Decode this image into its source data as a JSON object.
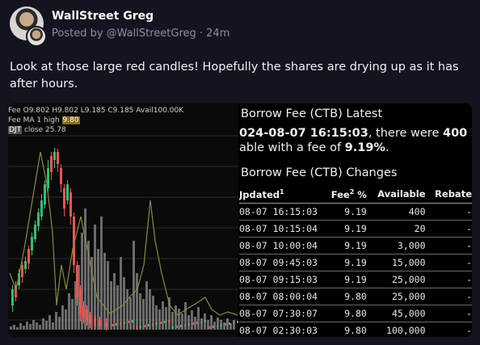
{
  "post": {
    "author": "WallStreet Greg",
    "meta": "Posted by @WallStreetGreg · 24m",
    "text": "Look at those large red candles! Hopefully the shares are drying up as it has after hours."
  },
  "chart_image": {
    "legend_line1": "Fee O9.802 H9.802 L9.185 C9.185 Avail100.00K",
    "legend_line2_prefix": "Fee MA 1 high",
    "legend_line2_value": "9.80",
    "legend_line3_symbol": "DJT",
    "legend_line3_text": "close 25.78",
    "colors": {
      "up": "#2fbf71",
      "down": "#ef5350",
      "volume": "#8c8c8c",
      "fee_line": "#8c8a3a"
    }
  },
  "chart_data": {
    "type": "candlestick",
    "legend": [
      "Fee O9.802 H9.802 L9.185 C9.185 Avail100.00K",
      "Fee MA 1 high 9.80",
      "DJT close 25.78"
    ],
    "price_close": 25.78,
    "fee_high": 9.8
  },
  "borrow": {
    "latest_title": "Borrow Fee (CTB) Latest",
    "latest_date": "024-08-07 16:15:03",
    "latest_text_mid": ", there were ",
    "latest_count": "400",
    "latest_line2_a": "able with a fee of ",
    "latest_fee": "9.19%",
    "latest_line2_b": ".",
    "changes_title": "Borrow Fee (CTB) Changes",
    "columns": {
      "updated": "Jpdated",
      "updated_sup": "1",
      "fee": "Fee",
      "fee_sup": "2",
      "fee_unit": "%",
      "available": "Available",
      "rebate": "Rebate"
    },
    "rows": [
      {
        "updated": "08-07 16:15:03",
        "fee": "9.19",
        "available": "400",
        "rebate": "-"
      },
      {
        "updated": "08-07 10:15:04",
        "fee": "9.19",
        "available": "20",
        "rebate": "-"
      },
      {
        "updated": "08-07 10:00:04",
        "fee": "9.19",
        "available": "3,000",
        "rebate": "-"
      },
      {
        "updated": "08-07 09:45:03",
        "fee": "9.19",
        "available": "15,000",
        "rebate": "-"
      },
      {
        "updated": "08-07 09:15:03",
        "fee": "9.19",
        "available": "25,000",
        "rebate": "-"
      },
      {
        "updated": "08-07 08:00:04",
        "fee": "9.80",
        "available": "25,000",
        "rebate": "-"
      },
      {
        "updated": "08-07 07:30:07",
        "fee": "9.80",
        "available": "45,000",
        "rebate": "-"
      },
      {
        "updated": "08-07 02:30:03",
        "fee": "9.80",
        "available": "100,000",
        "rebate": "-"
      }
    ]
  }
}
